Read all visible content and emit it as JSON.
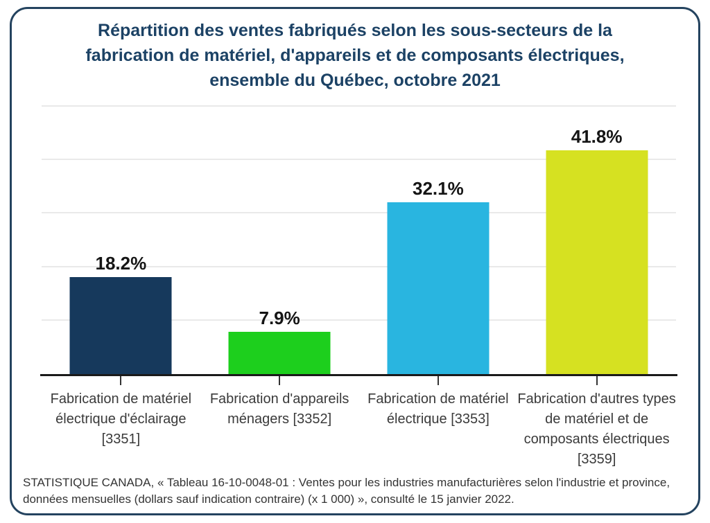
{
  "chart_data": {
    "type": "bar",
    "title": "Répartition des ventes fabriqués selon les sous-secteurs de la fabrication de matériel, d'appareils et de composants électriques, ensemble du Québec, octobre 2021",
    "categories": [
      "Fabrication de matériel électrique d'éclairage [3351]",
      "Fabrication d'appareils ménagers [3352]",
      "Fabrication de matériel électrique [3353]",
      "Fabrication d'autres types de matériel et de composants électriques [3359]"
    ],
    "values": [
      18.2,
      7.9,
      32.1,
      41.8
    ],
    "value_labels": [
      "18.2%",
      "7.9%",
      "32.1%",
      "41.8%"
    ],
    "bar_colors": [
      "#16395c",
      "#1dcf1d",
      "#29b5e0",
      "#d6e121"
    ],
    "xlabel": "",
    "ylabel": "",
    "ylim": [
      0,
      50
    ],
    "gridline_step": 10,
    "grid": "horizontal-only",
    "legend": "none",
    "y_axis_tick_labels_visible": false
  },
  "footer": {
    "source": "STATISTIQUE CANADA, « Tableau 16-10-0048-01 : Ventes pour les industries manufacturières selon l'industrie et province, données mensuelles (dollars sauf indication contraire) (x 1 000) », consulté le 15 janvier 2022."
  },
  "colors": {
    "card_border": "#24435f",
    "title_text": "#1c4265",
    "gridline": "#e9e9e9",
    "axis_line": "#1a1a1a",
    "category_text": "#3a3a3a",
    "value_text": "#151515",
    "source_text": "#333333"
  }
}
